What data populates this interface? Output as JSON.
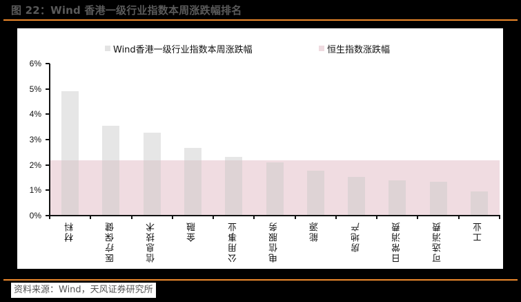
{
  "header": {
    "title": "图 22：Wind 香港一级行业指数本周涨跌幅排名"
  },
  "footer": {
    "source": "资料来源：Wind，天风证券研究所"
  },
  "colors": {
    "accent_rule": "#f08a2c",
    "title_text": "#5a5a5a",
    "bar_fill": "#e3e3e3",
    "band_fill": "#efdbe0"
  },
  "chart_data": {
    "type": "bar",
    "title": "图 22：Wind 香港一级行业指数本周涨跌幅排名",
    "xlabel": "",
    "ylabel": "",
    "ylim": [
      0,
      6
    ],
    "y_ticks": [
      "0%",
      "1%",
      "2%",
      "3%",
      "4%",
      "5%",
      "6%"
    ],
    "grid": false,
    "legend_position": "top",
    "legend": [
      "Wind香港一级行业指数本周涨跌幅",
      "恒生指数涨跌幅"
    ],
    "categories": [
      "材料",
      "医疗保健",
      "信息技术",
      "金融",
      "公用事业",
      "电信服务",
      "能源",
      "房地产",
      "日常消费",
      "可选消费",
      "工业"
    ],
    "series": [
      {
        "name": "Wind香港一级行业指数本周涨跌幅",
        "type": "bar",
        "values": [
          4.92,
          3.55,
          3.28,
          2.67,
          2.31,
          2.09,
          1.77,
          1.53,
          1.39,
          1.33,
          0.95
        ]
      },
      {
        "name": "恒生指数涨跌幅",
        "type": "area",
        "values": [
          2.17,
          2.17,
          2.17,
          2.17,
          2.17,
          2.17,
          2.17,
          2.17,
          2.17,
          2.17,
          2.17
        ]
      }
    ]
  }
}
